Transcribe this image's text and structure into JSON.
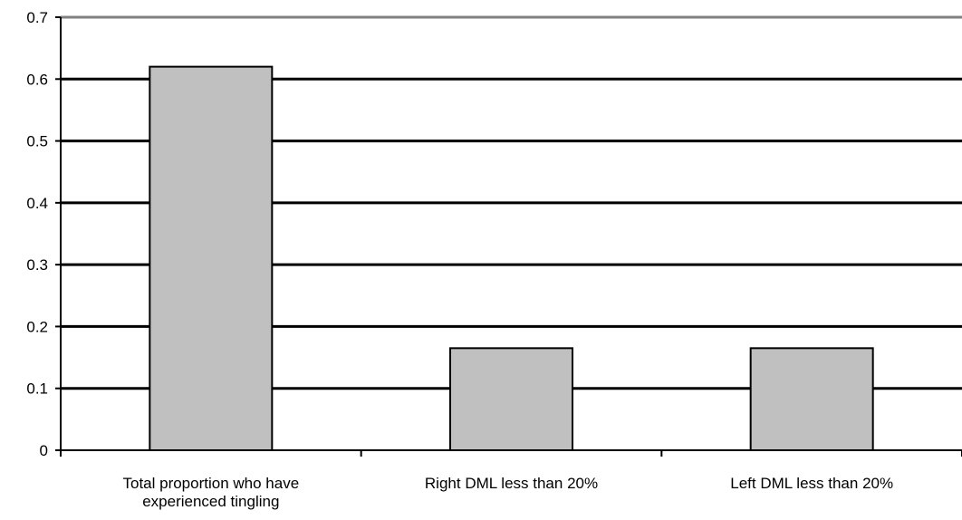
{
  "chart_data": {
    "type": "bar",
    "title": "",
    "xlabel": "",
    "ylabel": "",
    "categories": [
      [
        "Total proportion who have",
        "experienced tingling"
      ],
      [
        "Right DML less than 20%"
      ],
      [
        "Left DML less than 20%"
      ]
    ],
    "values": [
      0.62,
      0.165,
      0.165
    ],
    "ylim": [
      0,
      0.7
    ],
    "yticks": [
      0,
      0.1,
      0.2,
      0.3,
      0.4,
      0.5,
      0.6,
      0.7
    ],
    "ytick_labels": [
      "0",
      "0.1",
      "0.2",
      "0.3",
      "0.4",
      "0.5",
      "0.6",
      "0.7"
    ],
    "grid": true,
    "legend": "none",
    "colors": {
      "bar_fill": "#c0c0c0",
      "bar_stroke": "#000000",
      "gridline": "#000000",
      "top_border": "#808080"
    }
  }
}
